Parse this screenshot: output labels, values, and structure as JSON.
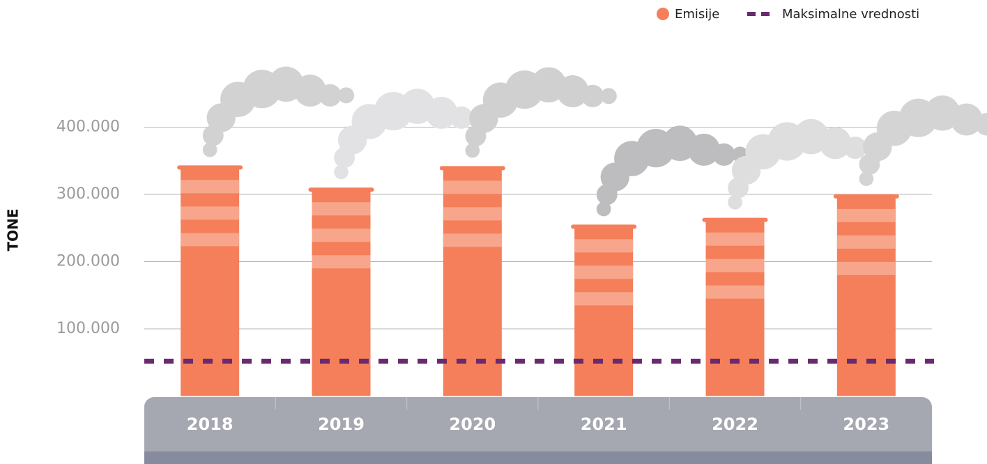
{
  "chart_data": {
    "type": "bar",
    "y_label": "TONE",
    "categories": [
      "2018",
      "2019",
      "2020",
      "2021",
      "2022",
      "2023"
    ],
    "series": [
      {
        "name": "Emisije",
        "color": "#f47f5a",
        "values": [
          340000,
          307000,
          339000,
          252000,
          262000,
          297000
        ]
      }
    ],
    "reference_line": {
      "name": "Maksimalne vrednosti",
      "color": "#6b2a6e",
      "value": 52000
    },
    "ylim": [
      0,
      500000
    ],
    "yticks": [
      {
        "value": 100000,
        "label": "100.000"
      },
      {
        "value": 200000,
        "label": "200.000"
      },
      {
        "value": 300000,
        "label": "300.000"
      },
      {
        "value": 400000,
        "label": "400.000"
      }
    ],
    "grid": true
  }
}
